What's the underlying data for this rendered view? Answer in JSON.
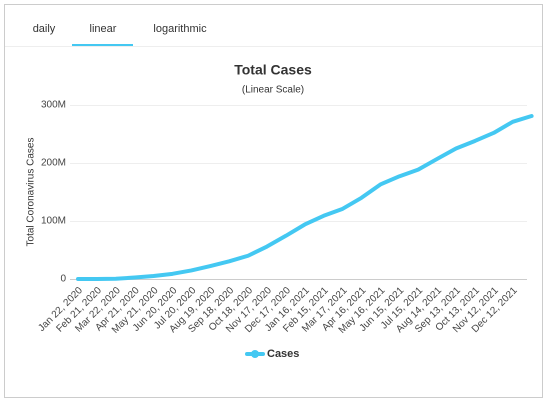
{
  "tabs": [
    "daily",
    "linear",
    "logarithmic"
  ],
  "chart_data": {
    "type": "line",
    "title": "Total Cases",
    "subtitle": "(Linear Scale)",
    "y_label": "Total Coronavirus Cases",
    "categories": [
      "Jan 22, 2020",
      "Feb 21, 2020",
      "Mar 22, 2020",
      "Apr 21, 2020",
      "May 21, 2020",
      "Jun 20, 2020",
      "Jul 20, 2020",
      "Aug 19, 2020",
      "Sep 18, 2020",
      "Oct 18, 2020",
      "Nov 17, 2020",
      "Dec 17, 2020",
      "Jan 16, 2021",
      "Feb 15, 2021",
      "Mar 17, 2021",
      "Apr 16, 2021",
      "May 16, 2021",
      "Jun 15, 2021",
      "Jul 15, 2021",
      "Aug 14, 2021",
      "Sep 13, 2021",
      "Oct 13, 2021",
      "Nov 12, 2021",
      "Dec 12, 2021",
      null
    ],
    "series": [
      {
        "name": "Cases",
        "color": "#44c8f2",
        "values": [
          600,
          77000,
          340000,
          2600000,
          5100000,
          8900000,
          14800000,
          22300000,
          30500000,
          40100000,
          56000000,
          74500000,
          94000000,
          109000000,
          121000000,
          140000000,
          163000000,
          177000000,
          188500000,
          207000000,
          225000000,
          238000000,
          252000000,
          271000000,
          281000000
        ]
      }
    ],
    "ylim": [
      0,
      300000000
    ],
    "yticks": [
      0,
      {
        "value": 100000000,
        "label": "100M"
      },
      {
        "value": 200000000,
        "label": "200M"
      },
      {
        "value": 300000000,
        "label": "300M"
      }
    ],
    "grid": true
  }
}
